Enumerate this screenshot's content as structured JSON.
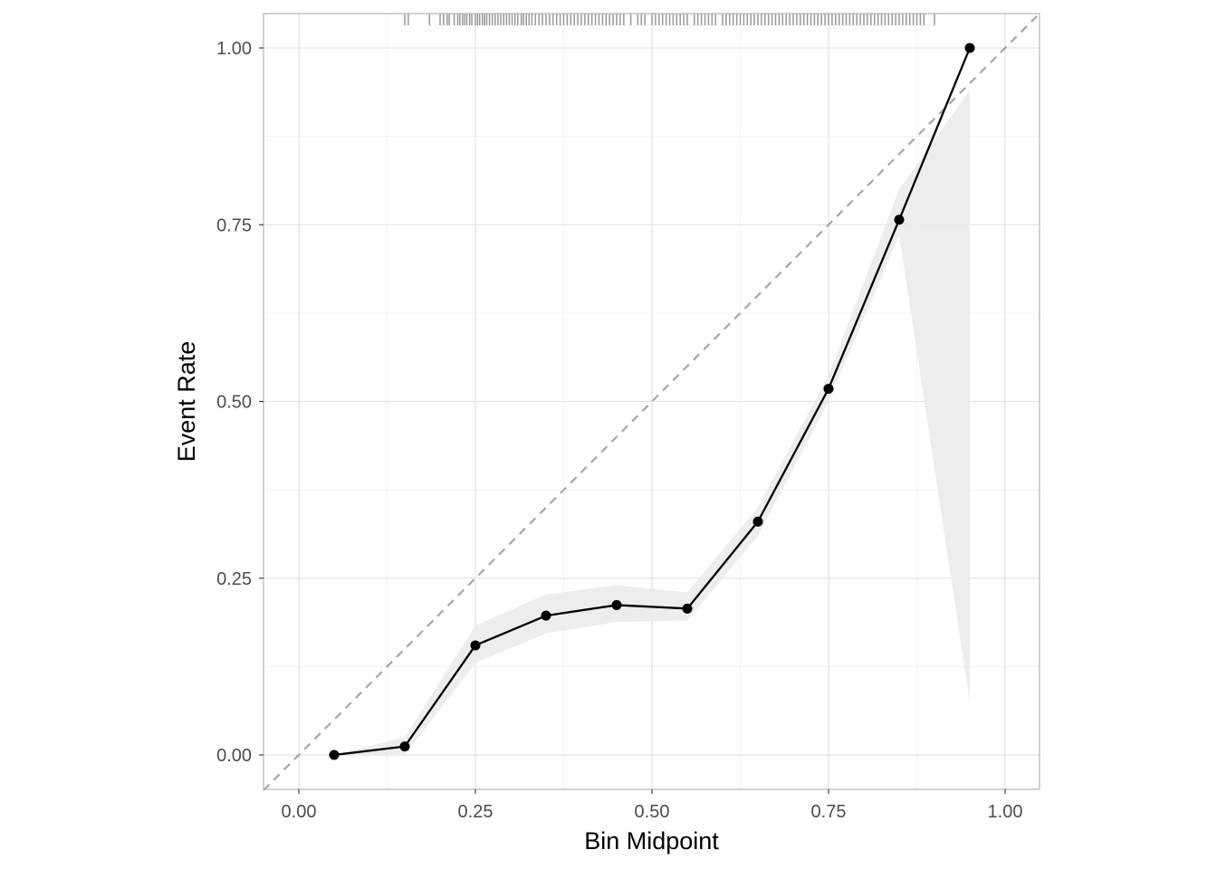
{
  "chart_data": {
    "type": "line",
    "xlabel": "Bin Midpoint",
    "ylabel": "Event Rate",
    "xlim": [
      -0.1,
      1.0
    ],
    "ylim": [
      -0.1,
      1.0
    ],
    "x_ticks": [
      0.0,
      0.25,
      0.5,
      0.75,
      1.0
    ],
    "y_ticks": [
      0.0,
      0.25,
      0.5,
      0.75,
      1.0
    ],
    "x_tick_labels": [
      "0.00",
      "0.25",
      "0.50",
      "0.75",
      "1.00"
    ],
    "y_tick_labels": [
      "0.00",
      "0.25",
      "0.50",
      "0.75",
      "1.00"
    ],
    "x_minor_gridlines": [
      0.125,
      0.375,
      0.625,
      0.875
    ],
    "y_minor_gridlines": [
      0.125,
      0.375,
      0.625,
      0.875
    ],
    "grid": true,
    "reference_line": {
      "slope": 1,
      "intercept": 0,
      "style": "dashed",
      "color": "#a6a6a6"
    },
    "series": [
      {
        "x": [
          0.05,
          0.15,
          0.25,
          0.35,
          0.45,
          0.55,
          0.65,
          0.75,
          0.85,
          0.95
        ],
        "y": [
          0.0,
          0.012,
          0.155,
          0.197,
          0.212,
          0.207,
          0.33,
          0.518,
          0.757,
          1.0
        ],
        "ci_lower": [
          0.0,
          0.0,
          0.13,
          0.172,
          0.188,
          0.19,
          0.31,
          0.5,
          0.735,
          0.075
        ],
        "ci_upper": [
          0.0,
          0.025,
          0.183,
          0.227,
          0.24,
          0.23,
          0.35,
          0.537,
          0.8,
          0.94
        ],
        "color": "#000000"
      }
    ],
    "rug": {
      "position": "top",
      "color": "#999999",
      "values": [
        0.15,
        0.155,
        0.185,
        0.2,
        0.205,
        0.21,
        0.213,
        0.22,
        0.225,
        0.228,
        0.232,
        0.235,
        0.238,
        0.242,
        0.245,
        0.25,
        0.253,
        0.256,
        0.26,
        0.263,
        0.266,
        0.27,
        0.274,
        0.278,
        0.282,
        0.286,
        0.29,
        0.294,
        0.298,
        0.302,
        0.306,
        0.31,
        0.315,
        0.318,
        0.322,
        0.326,
        0.33,
        0.335,
        0.34,
        0.345,
        0.35,
        0.355,
        0.36,
        0.365,
        0.37,
        0.375,
        0.38,
        0.385,
        0.39,
        0.395,
        0.4,
        0.405,
        0.41,
        0.415,
        0.42,
        0.425,
        0.43,
        0.435,
        0.44,
        0.445,
        0.45,
        0.455,
        0.46,
        0.47,
        0.48,
        0.485,
        0.49,
        0.5,
        0.505,
        0.51,
        0.515,
        0.52,
        0.525,
        0.53,
        0.535,
        0.54,
        0.545,
        0.55,
        0.56,
        0.565,
        0.57,
        0.575,
        0.58,
        0.585,
        0.59,
        0.6,
        0.605,
        0.61,
        0.615,
        0.62,
        0.625,
        0.63,
        0.635,
        0.64,
        0.645,
        0.65,
        0.655,
        0.66,
        0.665,
        0.67,
        0.675,
        0.68,
        0.685,
        0.69,
        0.695,
        0.7,
        0.705,
        0.71,
        0.715,
        0.72,
        0.725,
        0.73,
        0.735,
        0.74,
        0.745,
        0.75,
        0.755,
        0.76,
        0.765,
        0.77,
        0.775,
        0.78,
        0.785,
        0.79,
        0.795,
        0.8,
        0.805,
        0.81,
        0.815,
        0.82,
        0.825,
        0.83,
        0.835,
        0.84,
        0.845,
        0.85,
        0.855,
        0.86,
        0.865,
        0.87,
        0.875,
        0.88,
        0.885,
        0.9
      ]
    }
  }
}
